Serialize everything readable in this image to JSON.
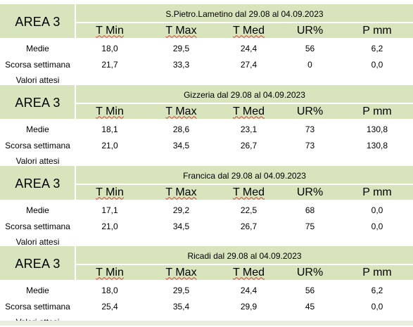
{
  "columns": [
    "T Min",
    "T Max",
    "T Med",
    "UR%",
    "P mm"
  ],
  "row_labels": [
    "Medie",
    "Scorsa settimana",
    "Valori attesi"
  ],
  "blocks": [
    {
      "area": "AREA 3",
      "station": "S.Pietro.Lametino dal 29.08 al 04.09.2023",
      "medie": [
        "18,0",
        "29,5",
        "24,4",
        "56",
        "6,2"
      ],
      "scorsa": [
        "21,7",
        "33,3",
        "27,4",
        "0",
        "0,0"
      ]
    },
    {
      "area": "AREA 3",
      "station": "Gizzeria dal 29.08 al 04.09.2023",
      "medie": [
        "18,1",
        "28,6",
        "23,1",
        "73",
        "130,8"
      ],
      "scorsa": [
        "21,0",
        "34,5",
        "26,7",
        "73",
        "130,8"
      ]
    },
    {
      "area": "AREA 3",
      "station": "Francica dal 29.08 al 04.09.2023",
      "medie": [
        "17,1",
        "29,2",
        "22,5",
        "68",
        "0,0"
      ],
      "scorsa": [
        "21,0",
        "34,5",
        "26,7",
        "75",
        "0,0"
      ]
    },
    {
      "area": "AREA 3",
      "station": "Ricadi  dal 29.08 al 04.09.2023",
      "medie": [
        "18,0",
        "29,5",
        "24,4",
        "56",
        "6,2"
      ],
      "scorsa": [
        "25,4",
        "35,4",
        "29,9",
        "45",
        "0,0"
      ]
    }
  ],
  "colors": {
    "header_bg": "#d8e4bc",
    "text": "#000000"
  }
}
